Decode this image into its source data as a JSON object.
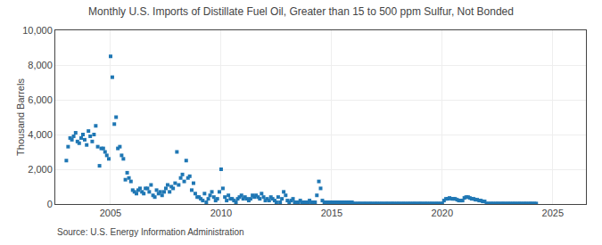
{
  "chart_data": {
    "type": "scatter",
    "title": "Monthly U.S. Imports of Distillate Fuel Oil, Greater than 15 to 500 ppm Sulfur, Not Bonded",
    "ylabel": "Thousand Barrels",
    "annotations": [
      "Source: U.S. Energy Information Administration"
    ],
    "marker": "square",
    "grid": true,
    "xlim": [
      2002.5,
      2026.5
    ],
    "xticks": [
      2005,
      2010,
      2015,
      2020,
      2025
    ],
    "ylim": [
      0,
      10000
    ],
    "yticks": [
      0,
      {
        "value": 2000,
        "label": "2,000"
      },
      {
        "value": 4000,
        "label": "4,000"
      },
      {
        "value": 6000,
        "label": "6,000"
      },
      {
        "value": 8000,
        "label": "8,000"
      },
      {
        "value": 10000,
        "label": "10,000"
      }
    ],
    "x": [
      2003.0,
      2003.08,
      2003.17,
      2003.25,
      2003.33,
      2003.42,
      2003.5,
      2003.58,
      2003.67,
      2003.75,
      2003.83,
      2003.92,
      2004.0,
      2004.08,
      2004.17,
      2004.25,
      2004.33,
      2004.42,
      2004.5,
      2004.58,
      2004.67,
      2004.75,
      2004.83,
      2004.92,
      2005.0,
      2005.08,
      2005.17,
      2005.25,
      2005.33,
      2005.42,
      2005.5,
      2005.58,
      2005.67,
      2005.75,
      2005.83,
      2005.92,
      2006.0,
      2006.08,
      2006.17,
      2006.25,
      2006.33,
      2006.42,
      2006.5,
      2006.58,
      2006.67,
      2006.75,
      2006.83,
      2006.92,
      2007.0,
      2007.08,
      2007.17,
      2007.25,
      2007.33,
      2007.42,
      2007.5,
      2007.58,
      2007.67,
      2007.75,
      2007.83,
      2007.92,
      2008.0,
      2008.08,
      2008.17,
      2008.25,
      2008.33,
      2008.42,
      2008.5,
      2008.58,
      2008.67,
      2008.75,
      2008.83,
      2008.92,
      2009.0,
      2009.08,
      2009.17,
      2009.25,
      2009.33,
      2009.42,
      2009.5,
      2009.58,
      2009.67,
      2009.75,
      2009.83,
      2009.92,
      2010.0,
      2010.08,
      2010.17,
      2010.25,
      2010.33,
      2010.42,
      2010.5,
      2010.58,
      2010.67,
      2010.75,
      2010.83,
      2010.92,
      2011.0,
      2011.08,
      2011.17,
      2011.25,
      2011.33,
      2011.42,
      2011.5,
      2011.58,
      2011.67,
      2011.75,
      2011.83,
      2011.92,
      2012.0,
      2012.08,
      2012.17,
      2012.25,
      2012.33,
      2012.42,
      2012.5,
      2012.58,
      2012.67,
      2012.75,
      2012.83,
      2012.92,
      2013.0,
      2013.08,
      2013.17,
      2013.25,
      2013.33,
      2013.42,
      2013.5,
      2013.58,
      2013.67,
      2013.75,
      2013.83,
      2013.92,
      2014.0,
      2014.08,
      2014.17,
      2014.25,
      2014.33,
      2014.42,
      2014.5,
      2014.58,
      2014.67,
      2014.75,
      2014.83,
      2014.92,
      2015.0,
      2015.08,
      2015.17,
      2015.25,
      2015.33,
      2015.42,
      2015.5,
      2015.58,
      2015.67,
      2015.75,
      2015.83,
      2015.92,
      2016.0,
      2016.08,
      2016.17,
      2016.25,
      2016.33,
      2016.42,
      2016.5,
      2016.58,
      2016.67,
      2016.75,
      2016.83,
      2016.92,
      2017.0,
      2017.08,
      2017.17,
      2017.25,
      2017.33,
      2017.42,
      2017.5,
      2017.58,
      2017.67,
      2017.75,
      2017.83,
      2017.92,
      2018.0,
      2018.08,
      2018.17,
      2018.25,
      2018.33,
      2018.42,
      2018.5,
      2018.58,
      2018.67,
      2018.75,
      2018.83,
      2018.92,
      2019.0,
      2019.08,
      2019.17,
      2019.25,
      2019.33,
      2019.42,
      2019.5,
      2019.58,
      2019.67,
      2019.75,
      2019.83,
      2019.92,
      2020.0,
      2020.08,
      2020.17,
      2020.25,
      2020.33,
      2020.42,
      2020.5,
      2020.58,
      2020.67,
      2020.75,
      2020.83,
      2020.92,
      2021.0,
      2021.08,
      2021.17,
      2021.25,
      2021.33,
      2021.42,
      2021.5,
      2021.58,
      2021.67,
      2021.75,
      2021.83,
      2021.92,
      2022.0,
      2022.08,
      2022.17,
      2022.25,
      2022.33,
      2022.42,
      2022.5,
      2022.58,
      2022.67,
      2022.75,
      2022.83,
      2022.92,
      2023.0,
      2023.08,
      2023.17,
      2023.25,
      2023.33,
      2023.42,
      2023.5,
      2023.58,
      2023.67,
      2023.75,
      2023.83,
      2023.92,
      2024.0,
      2024.08,
      2024.17,
      2024.25
    ],
    "values": [
      2500,
      3300,
      3800,
      3700,
      3900,
      4100,
      3600,
      3500,
      3800,
      4000,
      3700,
      3400,
      4200,
      3900,
      3600,
      4000,
      4500,
      3300,
      2200,
      3200,
      3200,
      3000,
      2800,
      2600,
      8500,
      7300,
      4600,
      5000,
      3200,
      3300,
      2800,
      2600,
      1400,
      1800,
      1500,
      1300,
      800,
      700,
      600,
      800,
      900,
      700,
      600,
      900,
      900,
      700,
      1100,
      500,
      400,
      800,
      600,
      700,
      500,
      700,
      900,
      1100,
      700,
      1000,
      900,
      1200,
      3000,
      1100,
      1500,
      1700,
      1300,
      2500,
      1500,
      1600,
      800,
      1200,
      600,
      400,
      400,
      300,
      200,
      600,
      100,
      300,
      500,
      700,
      400,
      200,
      300,
      700,
      2000,
      900,
      400,
      200,
      500,
      300,
      300,
      200,
      100,
      300,
      400,
      500,
      300,
      400,
      300,
      200,
      300,
      500,
      400,
      500,
      400,
      300,
      600,
      400,
      200,
      300,
      200,
      400,
      300,
      200,
      100,
      400,
      100,
      300,
      700,
      500,
      200,
      100,
      200,
      300,
      100,
      100,
      100,
      200,
      100,
      100,
      100,
      100,
      200,
      100,
      100,
      100,
      500,
      1300,
      900,
      200,
      100,
      100,
      100,
      100,
      100,
      100,
      100,
      100,
      100,
      100,
      100,
      100,
      100,
      100,
      100,
      100,
      30,
      30,
      30,
      30,
      30,
      30,
      30,
      30,
      30,
      30,
      30,
      30,
      30,
      30,
      30,
      30,
      30,
      30,
      30,
      30,
      30,
      30,
      30,
      30,
      30,
      30,
      30,
      30,
      30,
      30,
      30,
      30,
      30,
      30,
      30,
      30,
      30,
      30,
      30,
      30,
      30,
      30,
      30,
      30,
      30,
      30,
      30,
      30,
      30,
      200,
      300,
      300,
      350,
      300,
      300,
      300,
      250,
      200,
      200,
      200,
      350,
      400,
      400,
      350,
      300,
      300,
      250,
      250,
      200,
      200,
      150,
      150,
      30,
      30,
      30,
      30,
      30,
      30,
      30,
      30,
      30,
      30,
      30,
      30,
      30,
      30,
      30,
      30,
      30,
      30,
      30,
      30,
      30,
      30,
      30,
      30,
      30,
      30,
      30,
      30
    ]
  }
}
